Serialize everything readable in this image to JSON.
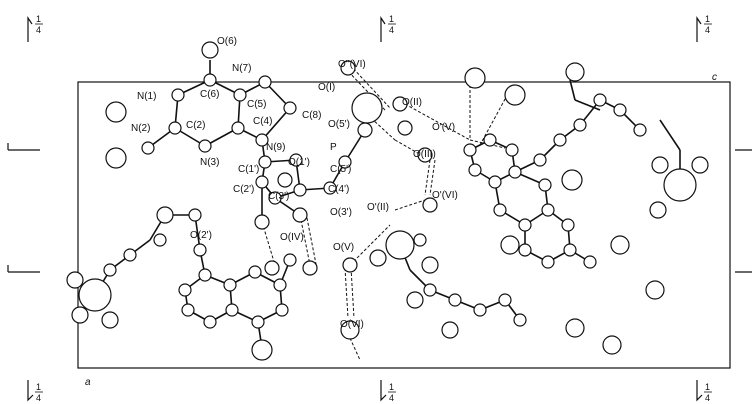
{
  "axis_labels": {
    "a": "a",
    "c": "c"
  },
  "symmetry_marks": [
    {
      "num": "1",
      "den": "4"
    },
    {
      "num": "1",
      "den": "4"
    },
    {
      "num": "1",
      "den": "4"
    },
    {
      "num": "1",
      "den": "4"
    },
    {
      "num": "1",
      "den": "4"
    },
    {
      "num": "1",
      "den": "4"
    }
  ],
  "atom_labels": [
    "O(6)",
    "N(7)",
    "N(1)",
    "C(6)",
    "C(5)",
    "C(8)",
    "N(2)",
    "C(2)",
    "C(4)",
    "N(9)",
    "N(3)",
    "O''(VI)",
    "O(I)",
    "O(II)",
    "O(5')",
    "P",
    "O'(V)",
    "O(III)",
    "C(1')",
    "O(1')",
    "C(2')",
    "C(5')",
    "C(3')",
    "C(4')",
    "O(3')",
    "O'(VI)",
    "O'(II)",
    "O(2')",
    "O(IV)",
    "O(V)",
    "O(VI)"
  ]
}
